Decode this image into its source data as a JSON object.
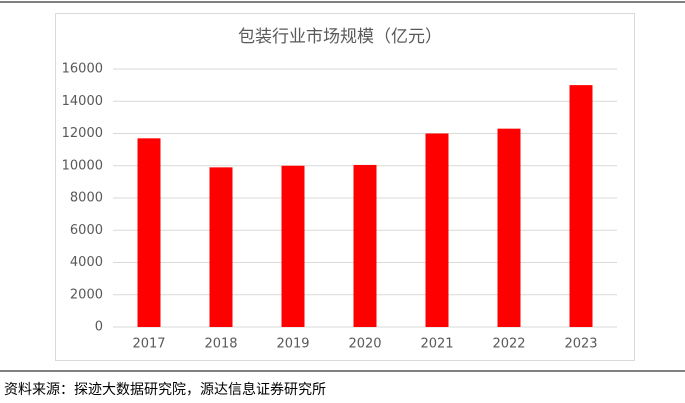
{
  "chart_data": {
    "type": "bar",
    "title": "包装行业市场规模（亿元）",
    "categories": [
      "2017",
      "2018",
      "2019",
      "2020",
      "2021",
      "2022",
      "2023"
    ],
    "values": [
      11700,
      9900,
      10000,
      10050,
      12000,
      12300,
      15000
    ],
    "color": "#ff0000",
    "ylim": [
      0,
      16000
    ],
    "yticks": [
      0,
      2000,
      4000,
      6000,
      8000,
      10000,
      12000,
      14000,
      16000
    ],
    "grid": true
  },
  "source": "资料来源：探迹大数据研究院，源达信息证券研究所"
}
